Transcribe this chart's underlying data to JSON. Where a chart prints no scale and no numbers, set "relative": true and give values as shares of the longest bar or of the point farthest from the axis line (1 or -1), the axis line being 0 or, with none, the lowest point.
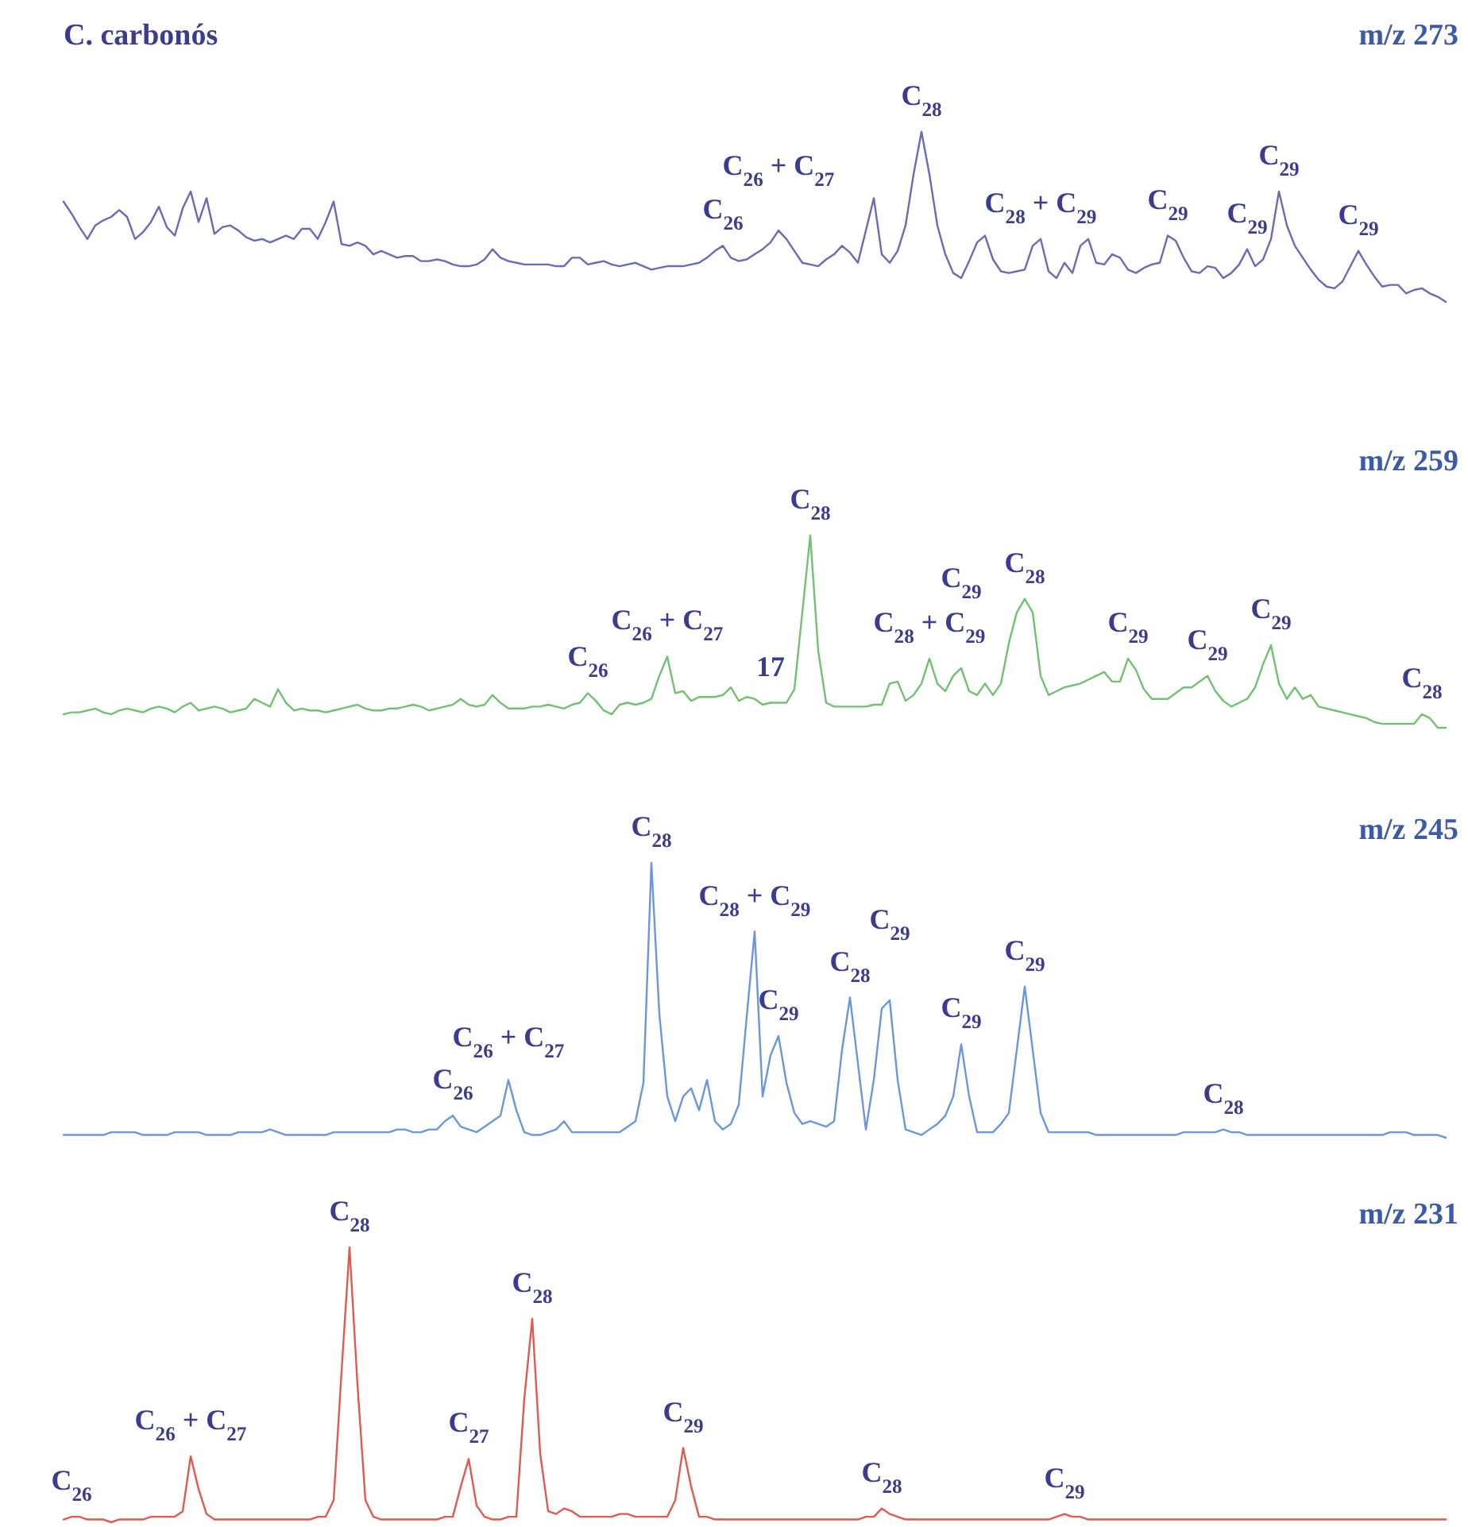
{
  "chart_data": [
    {
      "type": "line",
      "title": "C. carbonós",
      "subtitle": "m/z 273",
      "relative": true,
      "tick_labels": false,
      "categories": [
        null,
        null,
        null,
        null,
        null,
        null,
        null,
        null,
        null,
        null,
        null,
        null,
        null,
        null,
        null,
        null,
        null,
        null,
        null,
        null,
        null,
        null,
        null,
        null,
        null,
        null,
        null,
        null,
        null,
        null,
        null,
        null,
        null,
        null,
        null,
        null,
        null,
        null,
        null,
        null,
        null,
        null,
        null,
        null,
        null,
        null,
        null,
        null,
        null,
        null,
        null,
        null,
        null,
        null,
        null,
        null,
        null,
        null,
        null,
        null,
        null,
        null,
        null,
        null,
        null,
        null,
        null,
        null,
        null,
        null,
        null,
        null,
        null,
        null,
        null,
        null,
        null,
        null,
        null,
        null,
        null,
        null,
        null,
        null,
        null,
        null,
        null,
        null,
        null,
        null,
        null,
        null,
        null,
        null,
        null,
        null,
        null,
        null,
        null,
        null,
        null,
        null,
        null,
        null,
        null,
        null,
        null,
        null,
        null,
        null,
        null,
        null,
        null,
        null,
        null,
        null,
        null,
        null,
        null,
        null,
        null,
        null,
        null,
        null,
        null,
        null,
        null,
        null,
        null,
        null,
        null,
        null,
        null,
        null,
        null,
        null,
        null,
        null,
        null,
        null,
        null,
        null,
        null,
        null,
        null,
        null,
        null,
        null,
        null,
        null,
        null,
        null,
        null,
        null,
        null,
        null,
        null,
        null,
        null,
        null,
        null,
        null,
        null,
        null,
        null,
        null,
        null,
        null,
        null,
        null,
        null,
        null,
        null,
        null,
        null
      ],
      "series": [
        {
          "color": "#6a6ab8",
          "values": [
            0.59,
            0.52,
            0.44,
            0.37,
            0.45,
            0.48,
            0.5,
            0.54,
            0.5,
            0.37,
            0.41,
            0.47,
            0.56,
            0.44,
            0.39,
            0.55,
            0.65,
            0.47,
            0.61,
            0.4,
            0.44,
            0.45,
            0.42,
            0.38,
            0.36,
            0.37,
            0.35,
            0.37,
            0.39,
            0.37,
            0.43,
            0.43,
            0.37,
            0.47,
            0.59,
            0.34,
            0.33,
            0.35,
            0.33,
            0.28,
            0.3,
            0.28,
            0.26,
            0.27,
            0.27,
            0.24,
            0.24,
            0.25,
            0.24,
            0.22,
            0.21,
            0.21,
            0.22,
            0.25,
            0.31,
            0.26,
            0.24,
            0.23,
            0.22,
            0.22,
            0.22,
            0.22,
            0.21,
            0.21,
            0.26,
            0.26,
            0.22,
            0.23,
            0.24,
            0.22,
            0.21,
            0.22,
            0.23,
            0.21,
            0.19,
            0.2,
            0.21,
            0.21,
            0.21,
            0.22,
            0.23,
            0.26,
            0.3,
            0.33,
            0.26,
            0.24,
            0.25,
            0.28,
            0.31,
            0.35,
            0.42,
            0.37,
            0.3,
            0.23,
            0.22,
            0.21,
            0.25,
            0.28,
            0.33,
            0.29,
            0.23,
            0.42,
            0.61,
            0.28,
            0.23,
            0.3,
            0.45,
            0.75,
            1,
            0.75,
            0.45,
            0.28,
            0.17,
            0.14,
            0.24,
            0.35,
            0.39,
            0.25,
            0.18,
            0.17,
            0.18,
            0.19,
            0.33,
            0.37,
            0.18,
            0.14,
            0.23,
            0.17,
            0.33,
            0.37,
            0.23,
            0.22,
            0.28,
            0.26,
            0.19,
            0.17,
            0.2,
            0.22,
            0.23,
            0.39,
            0.36,
            0.26,
            0.18,
            0.17,
            0.21,
            0.2,
            0.14,
            0.17,
            0.22,
            0.31,
            0.21,
            0.25,
            0.37,
            0.65,
            0.45,
            0.33,
            0.26,
            0.19,
            0.13,
            0.09,
            0.08,
            0.12,
            0.21,
            0.3,
            0.22,
            0.15,
            0.09,
            0.1,
            0.1,
            0.05,
            0.07,
            0.08,
            0.05,
            0.03,
            0
          ]
        }
      ],
      "annotations": [
        {
          "text": "C$_{26}$",
          "y": 0.33
        },
        {
          "text": "C$_{26}$ + C$_{27}$",
          "y": 0.42
        },
        {
          "text": "C$_{28}$",
          "y": 1
        },
        {
          "text": "C$_{28}$ + C$_{29}$",
          "y": 0.37
        },
        {
          "text": "C$_{29}$",
          "y": 0.39
        },
        {
          "text": "C$_{29}$",
          "y": 0.31
        },
        {
          "text": "C$_{29}$",
          "y": 0.65
        },
        {
          "text": "C$_{29}$",
          "y": 0.3
        }
      ]
    },
    {
      "type": "line",
      "subtitle": "m/z 259",
      "relative": true,
      "tick_labels": false,
      "categories": [
        null,
        null,
        null,
        null,
        null,
        null,
        null,
        null,
        null,
        null,
        null,
        null,
        null,
        null,
        null,
        null,
        null,
        null,
        null,
        null,
        null,
        null,
        null,
        null,
        null,
        null,
        null,
        null,
        null,
        null,
        null,
        null,
        null,
        null,
        null,
        null,
        null,
        null,
        null,
        null,
        null,
        null,
        null,
        null,
        null,
        null,
        null,
        null,
        null,
        null,
        null,
        null,
        null,
        null,
        null,
        null,
        null,
        null,
        null,
        null,
        null,
        null,
        null,
        null,
        null,
        null,
        null,
        null,
        null,
        null,
        null,
        null,
        null,
        null,
        null,
        null,
        null,
        null,
        null,
        null,
        null,
        null,
        null,
        null,
        null,
        null,
        null,
        null,
        null,
        null,
        null,
        null,
        null,
        null,
        null,
        null,
        null,
        null,
        null,
        null,
        null,
        null,
        null,
        null,
        null,
        null,
        null,
        null,
        null,
        null,
        null,
        null,
        null,
        null,
        null,
        null,
        null,
        null,
        null,
        null,
        null,
        null,
        null,
        null,
        null,
        null,
        null,
        null,
        null,
        null,
        null,
        null,
        null,
        null,
        null,
        null,
        null,
        null,
        null,
        null,
        null,
        null,
        null,
        null,
        null,
        null,
        null,
        null,
        null,
        null,
        null,
        null,
        null,
        null,
        null,
        null,
        null,
        null,
        null,
        null,
        null,
        null,
        null,
        null,
        null,
        null,
        null,
        null,
        null,
        null,
        null,
        null,
        null,
        null,
        null
      ],
      "series": [
        {
          "color": "#72c072",
          "values": [
            0.07,
            0.08,
            0.08,
            0.09,
            0.1,
            0.08,
            0.07,
            0.09,
            0.1,
            0.09,
            0.08,
            0.1,
            0.11,
            0.1,
            0.08,
            0.11,
            0.13,
            0.09,
            0.1,
            0.11,
            0.1,
            0.08,
            0.09,
            0.1,
            0.15,
            0.13,
            0.11,
            0.2,
            0.13,
            0.09,
            0.1,
            0.09,
            0.09,
            0.08,
            0.09,
            0.1,
            0.11,
            0.12,
            0.1,
            0.09,
            0.09,
            0.1,
            0.1,
            0.11,
            0.12,
            0.11,
            0.09,
            0.1,
            0.11,
            0.12,
            0.15,
            0.12,
            0.11,
            0.12,
            0.17,
            0.13,
            0.1,
            0.1,
            0.1,
            0.11,
            0.11,
            0.12,
            0.11,
            0.1,
            0.12,
            0.13,
            0.18,
            0.14,
            0.09,
            0.07,
            0.12,
            0.13,
            0.12,
            0.13,
            0.15,
            0.27,
            0.37,
            0.18,
            0.19,
            0.14,
            0.16,
            0.16,
            0.16,
            0.17,
            0.21,
            0.14,
            0.16,
            0.15,
            0.12,
            0.13,
            0.13,
            0.13,
            0.2,
            0.6,
            1,
            0.4,
            0.13,
            0.11,
            0.11,
            0.11,
            0.11,
            0.11,
            0.12,
            0.12,
            0.23,
            0.24,
            0.14,
            0.17,
            0.23,
            0.36,
            0.23,
            0.19,
            0.27,
            0.31,
            0.19,
            0.17,
            0.23,
            0.17,
            0.23,
            0.44,
            0.6,
            0.67,
            0.6,
            0.27,
            0.17,
            0.19,
            0.21,
            0.22,
            0.23,
            0.25,
            0.27,
            0.29,
            0.24,
            0.24,
            0.36,
            0.3,
            0.2,
            0.15,
            0.15,
            0.15,
            0.18,
            0.21,
            0.21,
            0.24,
            0.27,
            0.19,
            0.14,
            0.11,
            0.13,
            0.15,
            0.21,
            0.33,
            0.43,
            0.23,
            0.15,
            0.21,
            0.15,
            0.17,
            0.11,
            0.1,
            0.09,
            0.08,
            0.07,
            0.06,
            0.05,
            0.03,
            0.02,
            0.02,
            0.02,
            0.02,
            0.02,
            0.07,
            0.05,
            0,
            0
          ]
        }
      ],
      "annotations": [
        {
          "text": "C$_{26}$",
          "y": 0.18
        },
        {
          "text": "C$_{26}$ + C$_{27}$",
          "y": 0.37
        },
        {
          "text": "17",
          "y": 0.13
        },
        {
          "text": "C$_{28}$",
          "y": 1
        },
        {
          "text": "C$_{28}$ + C$_{29}$",
          "y": 0.36
        },
        {
          "text": "C$_{29}$",
          "y": 0.31
        },
        {
          "text": "C$_{28}$",
          "y": 0.67
        },
        {
          "text": "C$_{29}$",
          "y": 0.36
        },
        {
          "text": "C$_{29}$",
          "y": 0.27
        },
        {
          "text": "C$_{29}$",
          "y": 0.43
        },
        {
          "text": "C$_{28}$",
          "y": 0.07
        }
      ]
    },
    {
      "type": "line",
      "subtitle": "m/z 245",
      "relative": true,
      "tick_labels": false,
      "categories": [
        null,
        null,
        null,
        null,
        null,
        null,
        null,
        null,
        null,
        null,
        null,
        null,
        null,
        null,
        null,
        null,
        null,
        null,
        null,
        null,
        null,
        null,
        null,
        null,
        null,
        null,
        null,
        null,
        null,
        null,
        null,
        null,
        null,
        null,
        null,
        null,
        null,
        null,
        null,
        null,
        null,
        null,
        null,
        null,
        null,
        null,
        null,
        null,
        null,
        null,
        null,
        null,
        null,
        null,
        null,
        null,
        null,
        null,
        null,
        null,
        null,
        null,
        null,
        null,
        null,
        null,
        null,
        null,
        null,
        null,
        null,
        null,
        null,
        null,
        null,
        null,
        null,
        null,
        null,
        null,
        null,
        null,
        null,
        null,
        null,
        null,
        null,
        null,
        null,
        null,
        null,
        null,
        null,
        null,
        null,
        null,
        null,
        null,
        null,
        null,
        null,
        null,
        null,
        null,
        null,
        null,
        null,
        null,
        null,
        null,
        null,
        null,
        null,
        null,
        null,
        null,
        null,
        null,
        null,
        null,
        null,
        null,
        null,
        null,
        null,
        null,
        null,
        null,
        null,
        null,
        null,
        null,
        null,
        null,
        null,
        null,
        null,
        null,
        null,
        null,
        null,
        null,
        null,
        null,
        null,
        null,
        null,
        null,
        null,
        null,
        null,
        null,
        null,
        null,
        null,
        null,
        null,
        null,
        null,
        null,
        null,
        null,
        null,
        null,
        null,
        null,
        null,
        null,
        null,
        null,
        null,
        null,
        null,
        null,
        null
      ],
      "series": [
        {
          "color": "#6a96e0",
          "values": [
            0.01,
            0.01,
            0.01,
            0.01,
            0.01,
            0.01,
            0.02,
            0.02,
            0.02,
            0.02,
            0.01,
            0.01,
            0.01,
            0.01,
            0.02,
            0.02,
            0.02,
            0.02,
            0.01,
            0.01,
            0.01,
            0.01,
            0.02,
            0.02,
            0.02,
            0.02,
            0.03,
            0.02,
            0.01,
            0.01,
            0.01,
            0.01,
            0.01,
            0.01,
            0.02,
            0.02,
            0.02,
            0.02,
            0.02,
            0.02,
            0.02,
            0.02,
            0.03,
            0.03,
            0.02,
            0.02,
            0.03,
            0.03,
            0.06,
            0.08,
            0.04,
            0.03,
            0.02,
            0.04,
            0.06,
            0.08,
            0.21,
            0.1,
            0.02,
            0.01,
            0.01,
            0.02,
            0.03,
            0.06,
            0.02,
            0.02,
            0.02,
            0.02,
            0.02,
            0.02,
            0.02,
            0.04,
            0.06,
            0.2,
            1,
            0.45,
            0.15,
            0.06,
            0.15,
            0.18,
            0.1,
            0.21,
            0.06,
            0.03,
            0.05,
            0.12,
            0.44,
            0.75,
            0.15,
            0.3,
            0.37,
            0.2,
            0.09,
            0.05,
            0.06,
            0.05,
            0.04,
            0.06,
            0.32,
            0.51,
            0.27,
            0.03,
            0.21,
            0.47,
            0.5,
            0.21,
            0.03,
            0.02,
            0.01,
            0.03,
            0.05,
            0.08,
            0.15,
            0.34,
            0.15,
            0.02,
            0.02,
            0.02,
            0.05,
            0.09,
            0.32,
            0.55,
            0.32,
            0.09,
            0.02,
            0.02,
            0.02,
            0.02,
            0.02,
            0.02,
            0.01,
            0.01,
            0.01,
            0.01,
            0.01,
            0.01,
            0.01,
            0.01,
            0.01,
            0.01,
            0.01,
            0.02,
            0.02,
            0.02,
            0.02,
            0.02,
            0.03,
            0.02,
            0.02,
            0.01,
            0.01,
            0.01,
            0.01,
            0.01,
            0.01,
            0.01,
            0.01,
            0.01,
            0.01,
            0.01,
            0.01,
            0.01,
            0.01,
            0.01,
            0.01,
            0.01,
            0.01,
            0.02,
            0.02,
            0.02,
            0.01,
            0.01,
            0.01,
            0.01,
            0
          ]
        }
      ],
      "annotations": [
        {
          "text": "C$_{26}$",
          "y": 0.08
        },
        {
          "text": "C$_{26}$ + C$_{27}$",
          "y": 0.21
        },
        {
          "text": "C$_{28}$",
          "y": 1
        },
        {
          "text": "C$_{28}$ + C$_{29}$",
          "y": 0.75
        },
        {
          "text": "C$_{29}$",
          "y": 0.37
        },
        {
          "text": "C$_{28}$",
          "y": 0.51
        },
        {
          "text": "C$_{29}$",
          "y": 0.5
        },
        {
          "text": "C$_{29}$",
          "y": 0.34
        },
        {
          "text": "C$_{29}$",
          "y": 0.55
        },
        {
          "text": "C$_{28}$",
          "y": 0.03
        }
      ]
    },
    {
      "type": "line",
      "subtitle": "m/z 231",
      "relative": true,
      "tick_labels": false,
      "categories": [
        null,
        null,
        null,
        null,
        null,
        null,
        null,
        null,
        null,
        null,
        null,
        null,
        null,
        null,
        null,
        null,
        null,
        null,
        null,
        null,
        null,
        null,
        null,
        null,
        null,
        null,
        null,
        null,
        null,
        null,
        null,
        null,
        null,
        null,
        null,
        null,
        null,
        null,
        null,
        null,
        null,
        null,
        null,
        null,
        null,
        null,
        null,
        null,
        null,
        null,
        null,
        null,
        null,
        null,
        null,
        null,
        null,
        null,
        null,
        null,
        null,
        null,
        null,
        null,
        null,
        null,
        null,
        null,
        null,
        null,
        null,
        null,
        null,
        null,
        null,
        null,
        null,
        null,
        null,
        null,
        null,
        null,
        null,
        null,
        null,
        null,
        null,
        null,
        null,
        null,
        null,
        null,
        null,
        null,
        null,
        null,
        null,
        null,
        null,
        null,
        null,
        null,
        null,
        null,
        null,
        null,
        null,
        null,
        null,
        null,
        null,
        null,
        null,
        null,
        null,
        null,
        null,
        null,
        null,
        null,
        null,
        null,
        null,
        null,
        null,
        null,
        null,
        null,
        null,
        null,
        null,
        null,
        null,
        null,
        null,
        null,
        null,
        null,
        null,
        null,
        null,
        null,
        null,
        null,
        null,
        null,
        null,
        null,
        null,
        null,
        null,
        null,
        null,
        null,
        null,
        null,
        null,
        null,
        null,
        null,
        null,
        null,
        null,
        null,
        null,
        null,
        null,
        null,
        null,
        null,
        null,
        null,
        null,
        null,
        null
      ],
      "series": [
        {
          "color": "#e05a50",
          "values": [
            0.01,
            0.02,
            0.02,
            0.01,
            0.01,
            0.01,
            0,
            0.01,
            0.01,
            0.01,
            0.01,
            0.02,
            0.02,
            0.02,
            0.02,
            0.04,
            0.24,
            0.12,
            0.03,
            0.01,
            0.01,
            0.01,
            0.01,
            0.01,
            0.01,
            0.01,
            0.01,
            0.01,
            0.01,
            0.01,
            0.01,
            0.01,
            0.02,
            0.02,
            0.08,
            0.55,
            1,
            0.5,
            0.08,
            0.02,
            0.01,
            0.01,
            0.01,
            0.01,
            0.01,
            0.01,
            0.01,
            0.01,
            0.02,
            0.02,
            0.13,
            0.23,
            0.06,
            0.02,
            0.01,
            0.01,
            0.02,
            0.02,
            0.45,
            0.74,
            0.25,
            0.04,
            0.03,
            0.05,
            0.04,
            0.02,
            0.02,
            0.02,
            0.02,
            0.02,
            0.03,
            0.03,
            0.02,
            0.02,
            0.02,
            0.02,
            0.02,
            0.08,
            0.27,
            0.13,
            0.02,
            0.02,
            0.01,
            0.01,
            0.01,
            0.01,
            0.01,
            0.01,
            0.01,
            0.01,
            0.01,
            0.01,
            0.01,
            0.01,
            0.01,
            0.01,
            0.01,
            0.01,
            0.01,
            0.01,
            0.01,
            0.02,
            0.02,
            0.05,
            0.03,
            0.02,
            0.01,
            0.01,
            0.01,
            0.01,
            0.01,
            0.01,
            0.01,
            0.01,
            0.01,
            0.01,
            0.01,
            0.01,
            0.01,
            0.01,
            0.01,
            0.01,
            0.01,
            0.01,
            0.01,
            0.02,
            0.03,
            0.02,
            0.02,
            0.01,
            0.01,
            0.01,
            0.01,
            0.01,
            0.01,
            0.01,
            0.01,
            0.01,
            0.01,
            0.01,
            0.01,
            0.01,
            0.01,
            0.01,
            0.01,
            0.01,
            0.01,
            0.01,
            0.01,
            0.01,
            0.01,
            0.01,
            0.01,
            0.01,
            0.01,
            0.01,
            0.01,
            0.01,
            0.01,
            0.01,
            0.01,
            0.01,
            0.01,
            0.01,
            0.01,
            0.01,
            0.01,
            0.01,
            0.01,
            0.01,
            0.01,
            0.01,
            0.01,
            0.01,
            0.01
          ]
        }
      ],
      "annotations": [
        {
          "text": "C$_{26}$",
          "y": 0.02
        },
        {
          "text": "C$_{26}$ + C$_{27}$",
          "y": 0.24
        },
        {
          "text": "C$_{28}$",
          "y": 1
        },
        {
          "text": "C$_{27}$",
          "y": 0.23
        },
        {
          "text": "C$_{28}$",
          "y": 0.74
        },
        {
          "text": "C$_{29}$",
          "y": 0.27
        },
        {
          "text": "C$_{28}$",
          "y": 0.05
        },
        {
          "text": "C$_{29}$",
          "y": 0.03
        }
      ]
    }
  ]
}
